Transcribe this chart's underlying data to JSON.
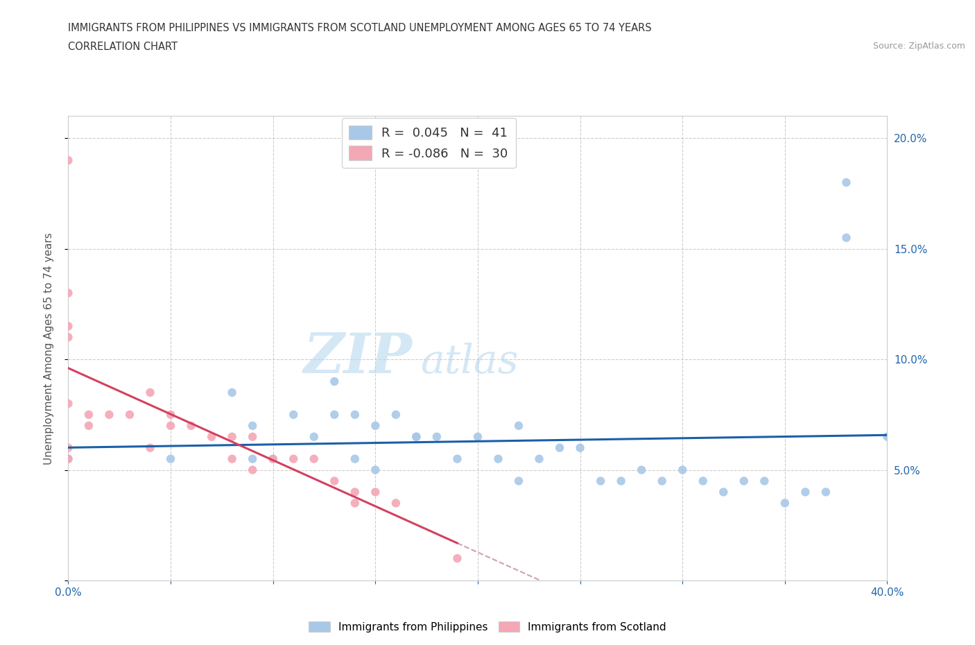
{
  "title_line1": "IMMIGRANTS FROM PHILIPPINES VS IMMIGRANTS FROM SCOTLAND UNEMPLOYMENT AMONG AGES 65 TO 74 YEARS",
  "title_line2": "CORRELATION CHART",
  "source_text": "Source: ZipAtlas.com",
  "ylabel": "Unemployment Among Ages 65 to 74 years",
  "xlim": [
    0.0,
    0.4
  ],
  "ylim": [
    0.0,
    0.21
  ],
  "xticks": [
    0.0,
    0.05,
    0.1,
    0.15,
    0.2,
    0.25,
    0.3,
    0.35,
    0.4
  ],
  "yticks": [
    0.0,
    0.05,
    0.1,
    0.15,
    0.2
  ],
  "watermark_zip": "ZIP",
  "watermark_atlas": "atlas",
  "color_blue": "#a8c8e8",
  "color_pink": "#f4a7b5",
  "color_blue_line": "#1a5fa8",
  "color_pink_line": "#d44060",
  "color_dashed_line": "#d0a0b0",
  "philippines_x": [
    0.0,
    0.05,
    0.08,
    0.09,
    0.09,
    0.1,
    0.11,
    0.12,
    0.13,
    0.13,
    0.14,
    0.14,
    0.15,
    0.15,
    0.16,
    0.17,
    0.17,
    0.18,
    0.19,
    0.2,
    0.21,
    0.22,
    0.22,
    0.23,
    0.24,
    0.25,
    0.26,
    0.27,
    0.28,
    0.29,
    0.3,
    0.31,
    0.32,
    0.33,
    0.34,
    0.35,
    0.36,
    0.37,
    0.38,
    0.38,
    0.4
  ],
  "philippines_y": [
    0.055,
    0.055,
    0.085,
    0.055,
    0.07,
    0.055,
    0.075,
    0.065,
    0.075,
    0.09,
    0.055,
    0.075,
    0.05,
    0.07,
    0.075,
    0.065,
    0.065,
    0.065,
    0.055,
    0.065,
    0.055,
    0.07,
    0.045,
    0.055,
    0.06,
    0.06,
    0.045,
    0.045,
    0.05,
    0.045,
    0.05,
    0.045,
    0.04,
    0.045,
    0.045,
    0.035,
    0.04,
    0.04,
    0.155,
    0.18,
    0.065
  ],
  "scotland_x": [
    0.0,
    0.0,
    0.0,
    0.0,
    0.0,
    0.0,
    0.0,
    0.01,
    0.01,
    0.02,
    0.03,
    0.04,
    0.04,
    0.05,
    0.05,
    0.06,
    0.07,
    0.08,
    0.08,
    0.09,
    0.09,
    0.1,
    0.11,
    0.12,
    0.13,
    0.14,
    0.14,
    0.15,
    0.16,
    0.19
  ],
  "scotland_y": [
    0.19,
    0.13,
    0.115,
    0.11,
    0.08,
    0.06,
    0.055,
    0.075,
    0.07,
    0.075,
    0.075,
    0.085,
    0.06,
    0.075,
    0.07,
    0.07,
    0.065,
    0.065,
    0.055,
    0.065,
    0.05,
    0.055,
    0.055,
    0.055,
    0.045,
    0.04,
    0.035,
    0.04,
    0.035,
    0.01
  ]
}
